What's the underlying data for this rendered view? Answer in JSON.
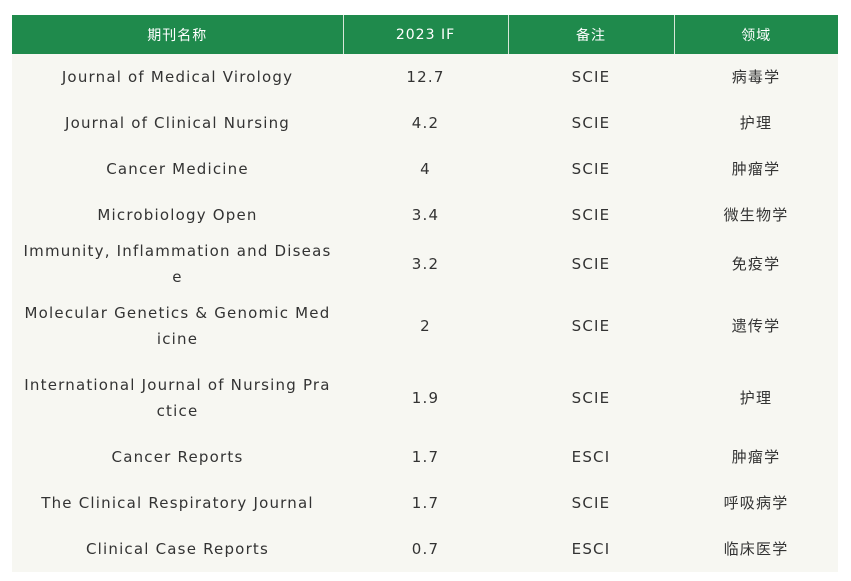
{
  "table": {
    "headers": [
      "期刊名称",
      "2023 IF",
      "备注",
      "领域"
    ],
    "rows": [
      {
        "name": "Journal of Medical Virology",
        "if": "12.7",
        "note": "SCIE",
        "field": "病毒学"
      },
      {
        "name": "Journal of Clinical Nursing",
        "if": "4.2",
        "note": "SCIE",
        "field": "护理"
      },
      {
        "name": "Cancer Medicine",
        "if": "4",
        "note": "SCIE",
        "field": "肿瘤学"
      },
      {
        "name": "Microbiology Open",
        "if": "3.4",
        "note": "SCIE",
        "field": "微生物学"
      },
      {
        "name": "Immunity, Inflammation and Disease",
        "if": "3.2",
        "note": "SCIE",
        "field": "免疫学"
      },
      {
        "name": "Molecular Genetics & Genomic Medicine",
        "if": "2",
        "note": "SCIE",
        "field": "遗传学"
      },
      {
        "name": "International Journal of Nursing Practice",
        "if": "1.9",
        "note": "SCIE",
        "field": "护理"
      },
      {
        "name": "Cancer Reports",
        "if": "1.7",
        "note": "ESCI",
        "field": "肿瘤学"
      },
      {
        "name": "The Clinical Respiratory Journal",
        "if": "1.7",
        "note": "SCIE",
        "field": "呼吸病学"
      },
      {
        "name": "Clinical Case Reports",
        "if": "0.7",
        "note": "ESCI",
        "field": "临床医学"
      }
    ]
  },
  "colors": {
    "header_bg": "#1f8a4c",
    "header_text": "#ffffff",
    "row_bg": "#f7f7f2",
    "body_text": "#333333"
  }
}
